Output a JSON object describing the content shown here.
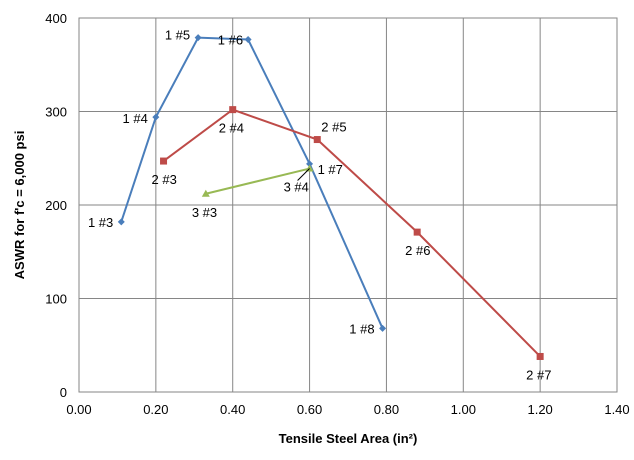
{
  "chart_data": {
    "type": "scatter",
    "title": "",
    "xlabel": "Tensile Steel Area (in²)",
    "ylabel": "ASWR for f'c = 6,000 psi",
    "xlim": [
      0,
      1.4
    ],
    "ylim": [
      0,
      400
    ],
    "xticks": [
      0,
      0.2,
      0.4,
      0.6,
      0.8,
      1.0,
      1.2,
      1.4
    ],
    "yticks": [
      0,
      100,
      200,
      300,
      400
    ],
    "x_tick_labels": [
      "0.00",
      "0.20",
      "0.40",
      "0.60",
      "0.80",
      "1.00",
      "1.20",
      "1.40"
    ],
    "y_tick_labels": [
      "0",
      "100",
      "200",
      "300",
      "400"
    ],
    "grid": true,
    "legend": "none",
    "series": [
      {
        "color": "#4a7ebb",
        "marker": "diamond",
        "points": [
          {
            "x": 0.11,
            "y": 182,
            "label": "1 #3"
          },
          {
            "x": 0.2,
            "y": 294,
            "label": "1 #4"
          },
          {
            "x": 0.31,
            "y": 379,
            "label": "1 #5"
          },
          {
            "x": 0.44,
            "y": 377,
            "label": "1 #6"
          },
          {
            "x": 0.6,
            "y": 244,
            "label": "1 #7"
          },
          {
            "x": 0.79,
            "y": 68,
            "label": "1 #8"
          }
        ]
      },
      {
        "color": "#be4b48",
        "marker": "square",
        "points": [
          {
            "x": 0.22,
            "y": 247,
            "label": "2 #3"
          },
          {
            "x": 0.4,
            "y": 302,
            "label": "2 #4"
          },
          {
            "x": 0.62,
            "y": 270,
            "label": "2 #5"
          },
          {
            "x": 0.88,
            "y": 171,
            "label": "2 #6"
          },
          {
            "x": 1.2,
            "y": 38,
            "label": "2 #7"
          }
        ]
      },
      {
        "color": "#98b954",
        "marker": "triangle",
        "points": [
          {
            "x": 0.33,
            "y": 212,
            "label": "3 #3"
          },
          {
            "x": 0.6,
            "y": 239,
            "label": "3 #4"
          }
        ]
      }
    ]
  }
}
